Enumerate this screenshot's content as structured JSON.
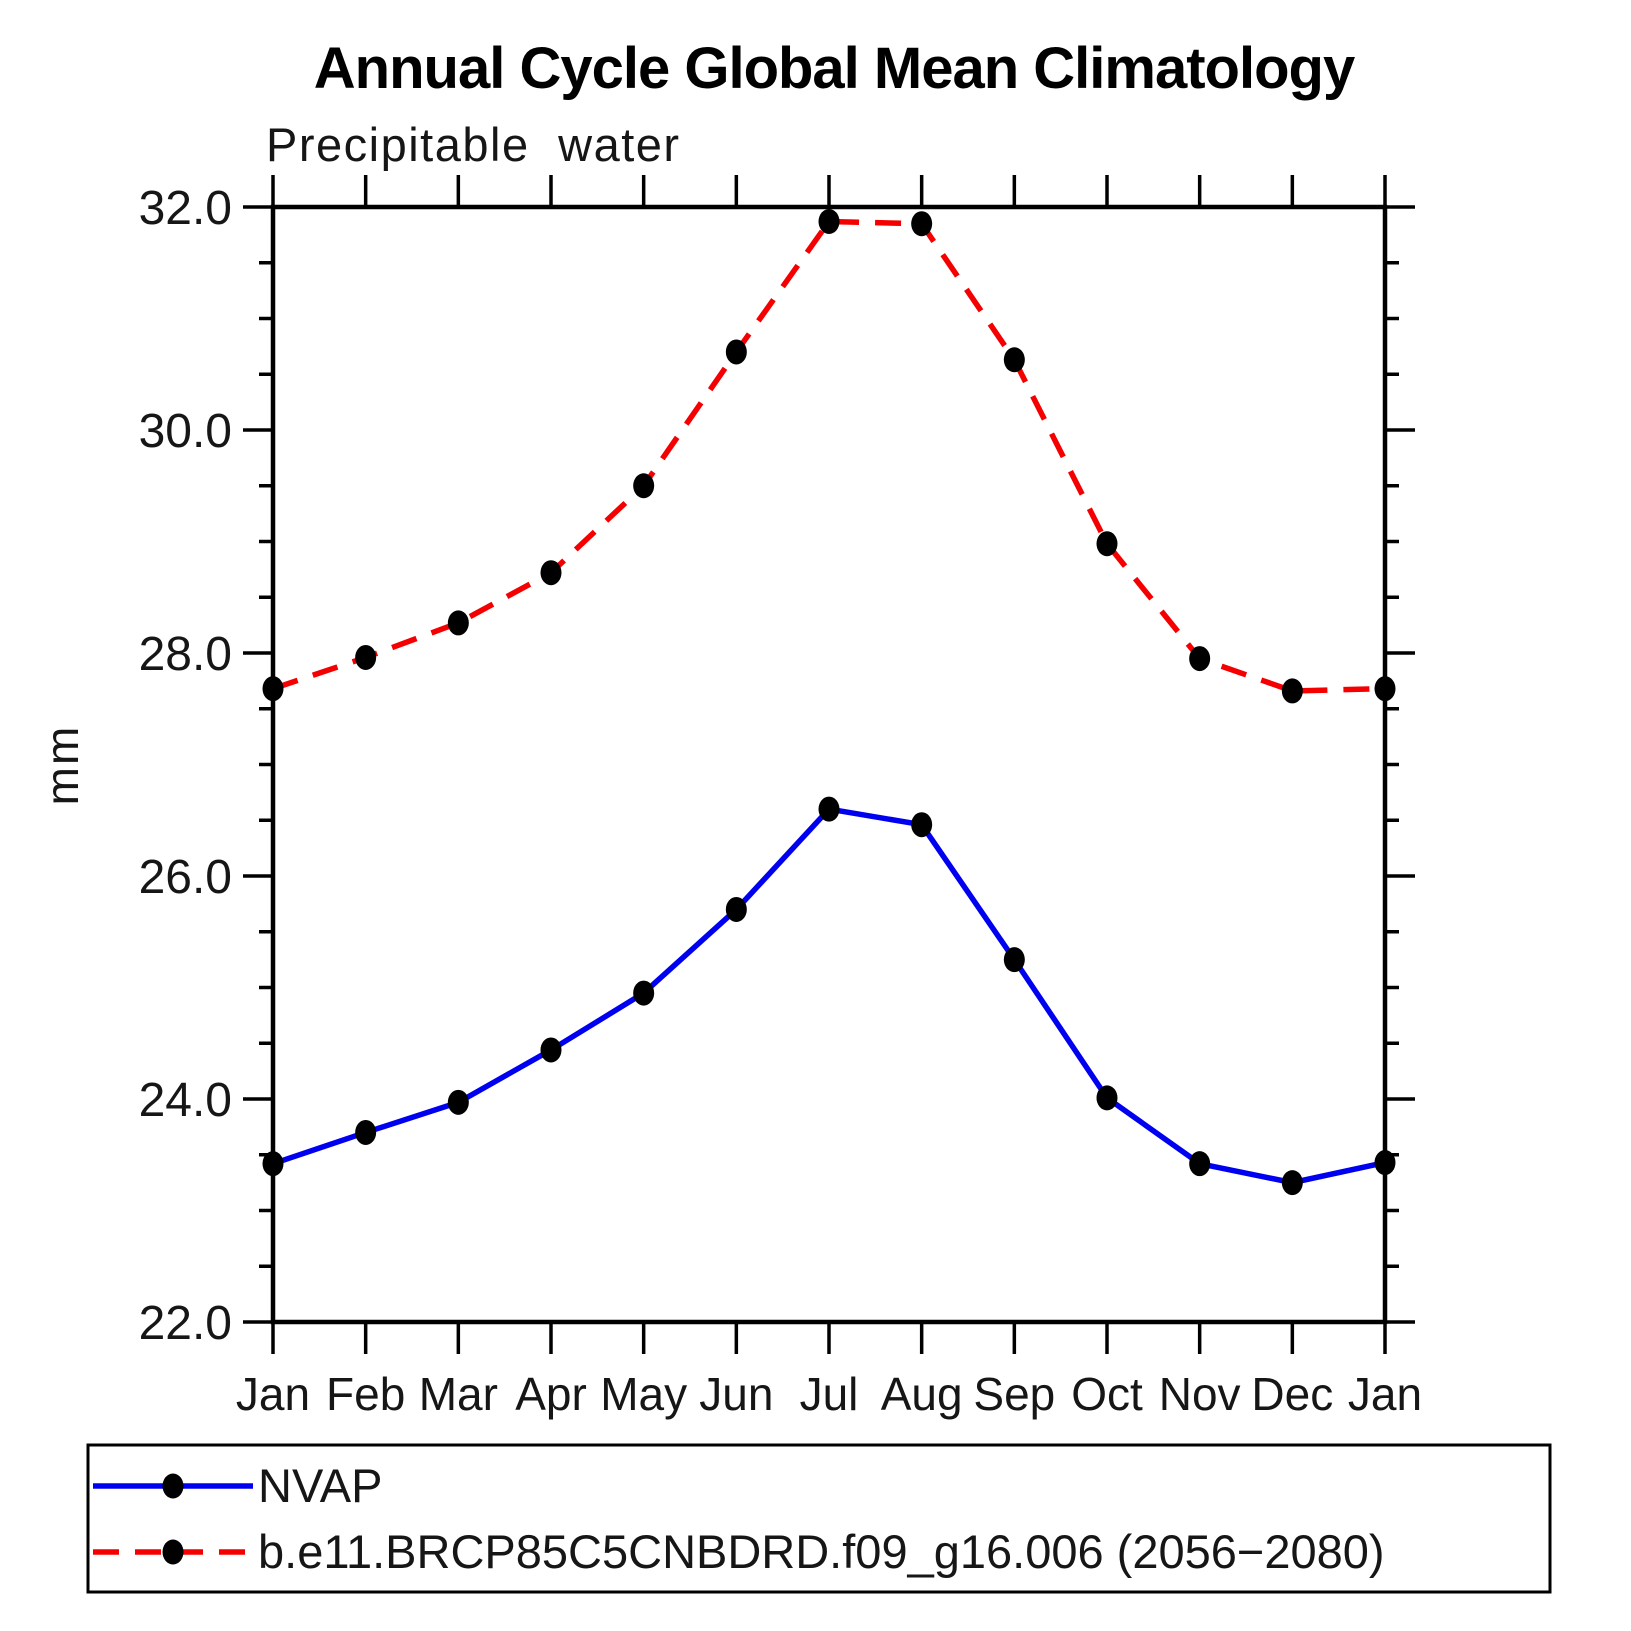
{
  "header": {
    "title": "Annual Cycle Global Mean Climatology",
    "subtitle": "Precipitable water"
  },
  "chart_data": {
    "type": "line",
    "title": "Annual Cycle Global Mean Climatology",
    "subtitle": "Precipitable water",
    "ylabel": "mm",
    "x_categories": [
      "Jan",
      "Feb",
      "Mar",
      "Apr",
      "May",
      "Jun",
      "Jul",
      "Aug",
      "Sep",
      "Oct",
      "Nov",
      "Dec",
      "Jan"
    ],
    "ylim": [
      22.0,
      32.0
    ],
    "ytick_major_interval": 2.0,
    "ytick_minor_interval": 0.5,
    "ytick_labels": [
      "22.0",
      "24.0",
      "26.0",
      "28.0",
      "30.0",
      "32.0"
    ],
    "grid": false,
    "legend_position": "bottom-box",
    "axis_color": "#000000",
    "marker_color": "#000000",
    "series": [
      {
        "name": "NVAP",
        "color": "#0000f0",
        "style": "solid",
        "marker": "filled-circle",
        "values": [
          23.42,
          23.7,
          23.97,
          24.44,
          24.95,
          25.7,
          26.6,
          26.46,
          25.25,
          24.01,
          23.42,
          23.25,
          23.43
        ]
      },
      {
        "name": "b.e11.BRCP85C5CNBDRD.f09_g16.006 (2056−2080)",
        "color": "#f40000",
        "style": "dashed",
        "marker": "filled-circle",
        "values": [
          27.68,
          27.96,
          28.27,
          28.72,
          29.5,
          30.7,
          31.87,
          31.85,
          30.63,
          28.98,
          27.95,
          27.66,
          27.68
        ]
      }
    ]
  },
  "legend": {
    "entries": [
      {
        "label": "NVAP"
      },
      {
        "label": "b.e11.BRCP85C5CNBDRD.f09_g16.006 (2056−2080)"
      }
    ]
  }
}
